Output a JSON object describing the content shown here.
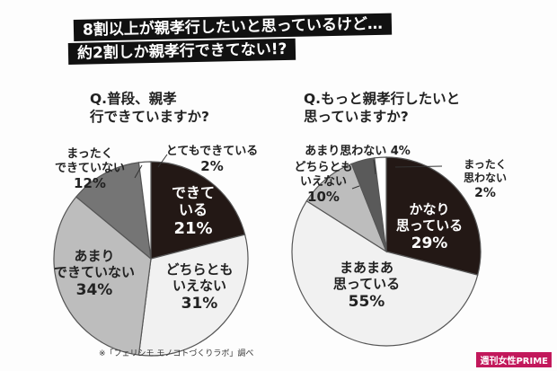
{
  "headline": {
    "line1": "8割以上が親孝行したいと思っているけど…",
    "line2": "約2割しか親孝行できてない!?"
  },
  "source": "※「フェリシモ モノコトづくりラボ」調べ",
  "brand": "週刊女性PRIME",
  "chart_data": [
    {
      "type": "pie",
      "title": "Q.普段、親孝行できていますか?",
      "slices": [
        {
          "label": "できている",
          "value": 21,
          "color": "#231815"
        },
        {
          "label": "どちらともいえない",
          "value": 31,
          "color": "#f1f1f1"
        },
        {
          "label": "あまりできていない",
          "value": 34,
          "color": "#bdbdbd"
        },
        {
          "label": "まったくできていない",
          "value": 12,
          "color": "#757575"
        },
        {
          "label": "とてもできている",
          "value": 2,
          "color": "#ffffff"
        }
      ]
    },
    {
      "type": "pie",
      "title": "Q.もっと親孝行したいと思っていますか?",
      "slices": [
        {
          "label": "かなり思っている",
          "value": 29,
          "color": "#231815"
        },
        {
          "label": "まあまあ思っている",
          "value": 55,
          "color": "#f1f1f1"
        },
        {
          "label": "どちらともいえない",
          "value": 10,
          "color": "#bdbdbd"
        },
        {
          "label": "あまり思わない",
          "value": 4,
          "color": "#5a5a5a"
        },
        {
          "label": "まったく思わない",
          "value": 2,
          "color": "#ffffff"
        }
      ]
    }
  ]
}
